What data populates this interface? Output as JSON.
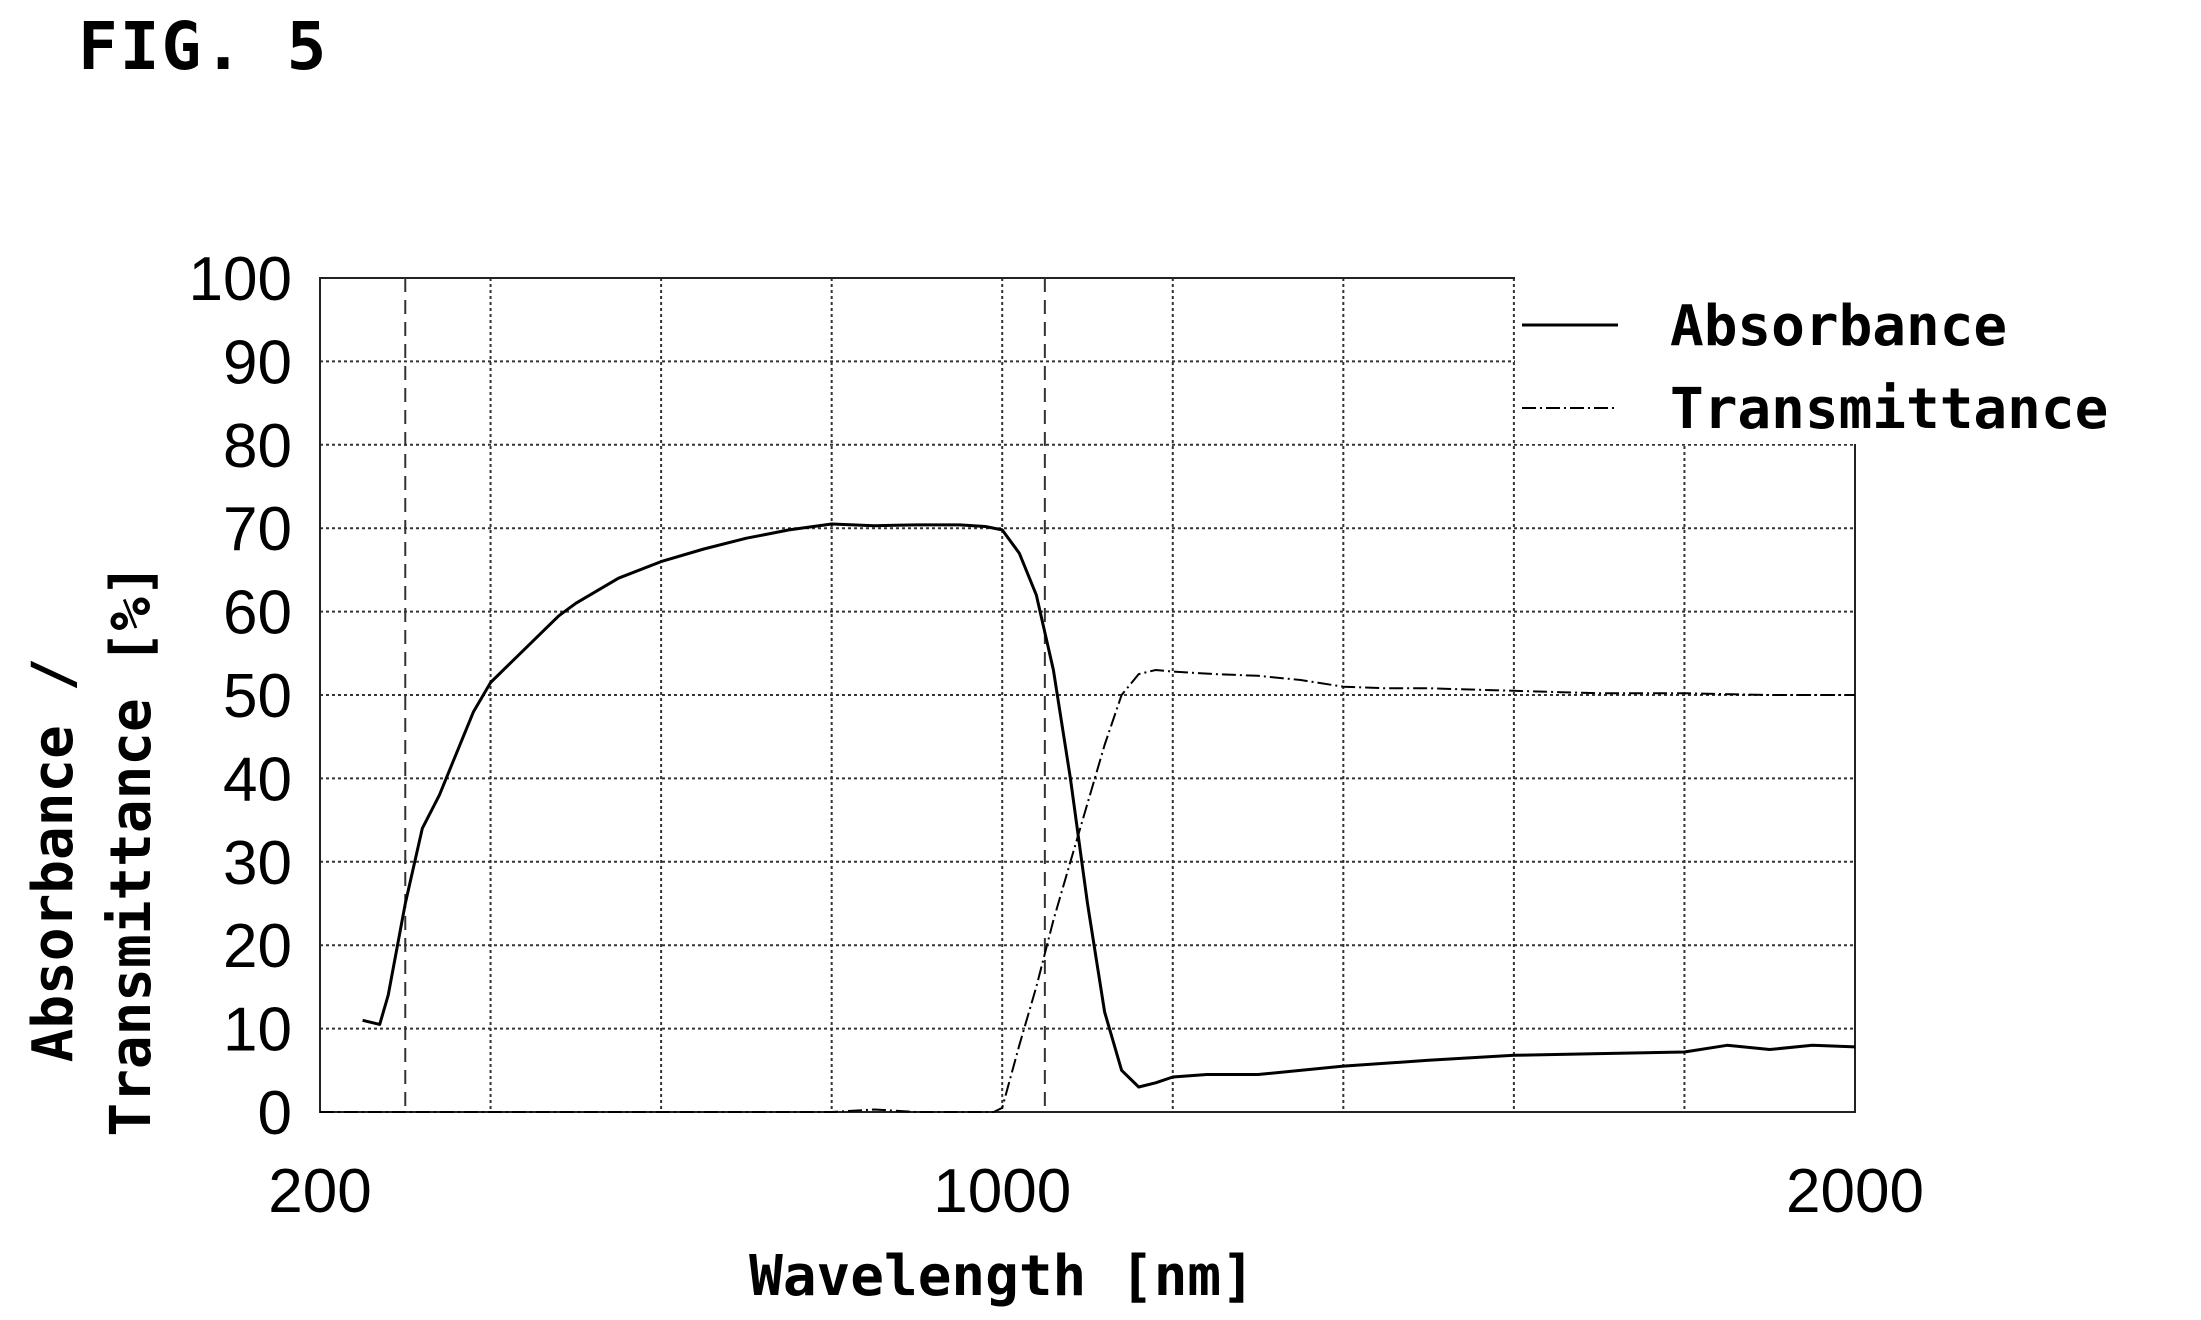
{
  "figure_label": "FIG. 5",
  "colors": {
    "line": "#000000",
    "background": "#ffffff",
    "grid": "#333333"
  },
  "chart_data": {
    "type": "line",
    "title": "FIG. 5",
    "xlabel": "Wavelength [nm]",
    "ylabel_line1": "Absorbance /",
    "ylabel_line2": "Transmittance [%]",
    "xlim": [
      200,
      2000
    ],
    "ylim": [
      0,
      100
    ],
    "x_ticks": [
      200,
      1000,
      2000
    ],
    "x_tick_labels": [
      "200",
      "1000",
      "2000"
    ],
    "x_gridlines": [
      200,
      400,
      600,
      800,
      1000,
      1200,
      1400,
      1600,
      1800,
      2000
    ],
    "y_ticks": [
      0,
      10,
      20,
      30,
      40,
      50,
      60,
      70,
      80,
      90,
      100
    ],
    "marker_lines_x": [
      300,
      1050
    ],
    "grid": true,
    "legend_position": "top-right",
    "series": [
      {
        "name": "Absorbance",
        "style": "solid",
        "x": [
          250,
          270,
          280,
          300,
          320,
          340,
          360,
          380,
          400,
          420,
          450,
          480,
          500,
          550,
          600,
          650,
          700,
          750,
          800,
          850,
          900,
          950,
          980,
          1000,
          1020,
          1040,
          1060,
          1080,
          1100,
          1120,
          1140,
          1160,
          1180,
          1200,
          1240,
          1300,
          1400,
          1500,
          1600,
          1700,
          1800,
          1850,
          1900,
          1950,
          2000
        ],
        "y": [
          11,
          10.5,
          14,
          25,
          34,
          38,
          43,
          48,
          51.5,
          53.5,
          56.5,
          59.5,
          61,
          64,
          66,
          67.5,
          68.8,
          69.8,
          70.5,
          70.3,
          70.4,
          70.4,
          70.2,
          69.8,
          67,
          62,
          53,
          40,
          25,
          12,
          5,
          3,
          3.5,
          4.2,
          4.5,
          4.5,
          5.5,
          6.2,
          6.8,
          7,
          7.2,
          8,
          7.5,
          8,
          7.8
        ]
      },
      {
        "name": "Transmittance",
        "style": "dash-dot",
        "x": [
          200,
          400,
          600,
          800,
          850,
          900,
          950,
          990,
          1000,
          1020,
          1040,
          1060,
          1080,
          1100,
          1120,
          1140,
          1160,
          1180,
          1200,
          1250,
          1300,
          1350,
          1400,
          1450,
          1500,
          1600,
          1700,
          1800,
          1900,
          2000
        ],
        "y": [
          0,
          0,
          0,
          0,
          0.3,
          0,
          0,
          0,
          0.5,
          8,
          15,
          23,
          30,
          37,
          44,
          50,
          52.5,
          53,
          52.8,
          52.5,
          52.3,
          51.8,
          51,
          50.8,
          50.8,
          50.5,
          50.2,
          50.2,
          50,
          50
        ]
      }
    ]
  }
}
